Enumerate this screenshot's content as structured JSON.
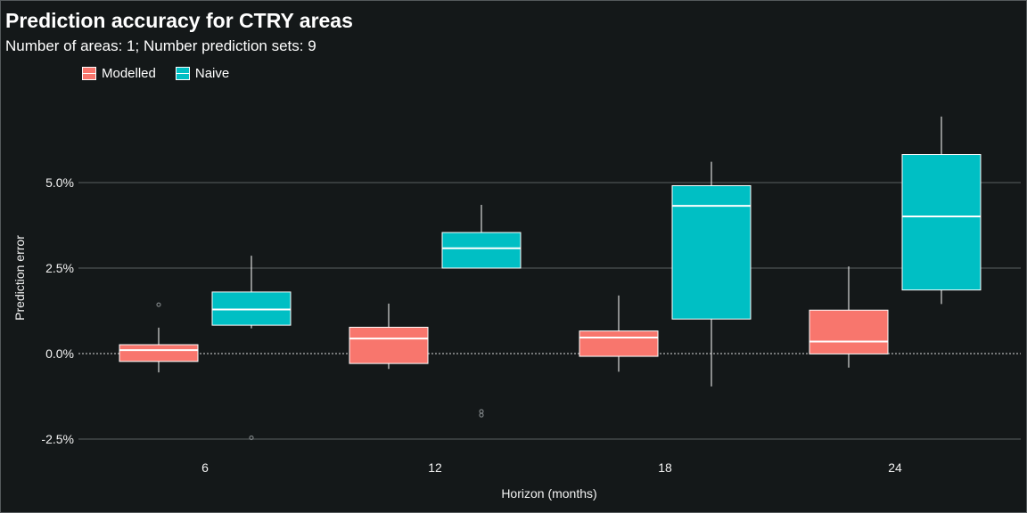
{
  "chart_data": {
    "type": "boxplot",
    "title": "Prediction accuracy for CTRY areas",
    "subtitle": "Number of areas: 1; Number prediction sets: 9",
    "xlabel": "Horizon (months)",
    "ylabel": "Prediction error",
    "categories": [
      "6",
      "12",
      "18",
      "24"
    ],
    "y_ticks": [
      -0.025,
      0.0,
      0.025,
      0.05
    ],
    "y_tick_labels": [
      "-2.5%",
      "0.0%",
      "2.5%",
      "5.0%"
    ],
    "ylim": [
      -0.0265,
      0.071
    ],
    "grid": "horizontal major",
    "reference_line": {
      "y": 0.0,
      "style": "dotted"
    },
    "legend_position": "top-left",
    "series": [
      {
        "name": "Modelled",
        "color": "#f8766d",
        "boxes": [
          {
            "category": "6",
            "min": -0.0055,
            "q1": -0.0023,
            "median": 0.001,
            "q3": 0.0026,
            "max": 0.0076,
            "outliers": [
              0.0143
            ]
          },
          {
            "category": "12",
            "min": -0.0045,
            "q1": -0.0029,
            "median": 0.0044,
            "q3": 0.0077,
            "max": 0.0146,
            "outliers": []
          },
          {
            "category": "18",
            "min": -0.0053,
            "q1": -0.0008,
            "median": 0.0047,
            "q3": 0.0066,
            "max": 0.017,
            "outliers": []
          },
          {
            "category": "24",
            "min": -0.0041,
            "q1": -0.0001,
            "median": 0.0035,
            "q3": 0.0127,
            "max": 0.0255,
            "outliers": []
          }
        ]
      },
      {
        "name": "Naive",
        "color": "#00bfc4",
        "boxes": [
          {
            "category": "6",
            "min": 0.0074,
            "q1": 0.0083,
            "median": 0.0129,
            "q3": 0.018,
            "max": 0.0286,
            "outliers": [
              -0.0246
            ]
          },
          {
            "category": "12",
            "min": 0.025,
            "q1": 0.025,
            "median": 0.0308,
            "q3": 0.0354,
            "max": 0.0435,
            "outliers": [
              -0.0169,
              -0.018
            ]
          },
          {
            "category": "18",
            "min": -0.0096,
            "q1": 0.0101,
            "median": 0.0432,
            "q3": 0.0491,
            "max": 0.0561,
            "outliers": []
          },
          {
            "category": "24",
            "min": 0.0145,
            "q1": 0.0186,
            "median": 0.0401,
            "q3": 0.0582,
            "max": 0.0693,
            "outliers": []
          }
        ]
      }
    ]
  }
}
